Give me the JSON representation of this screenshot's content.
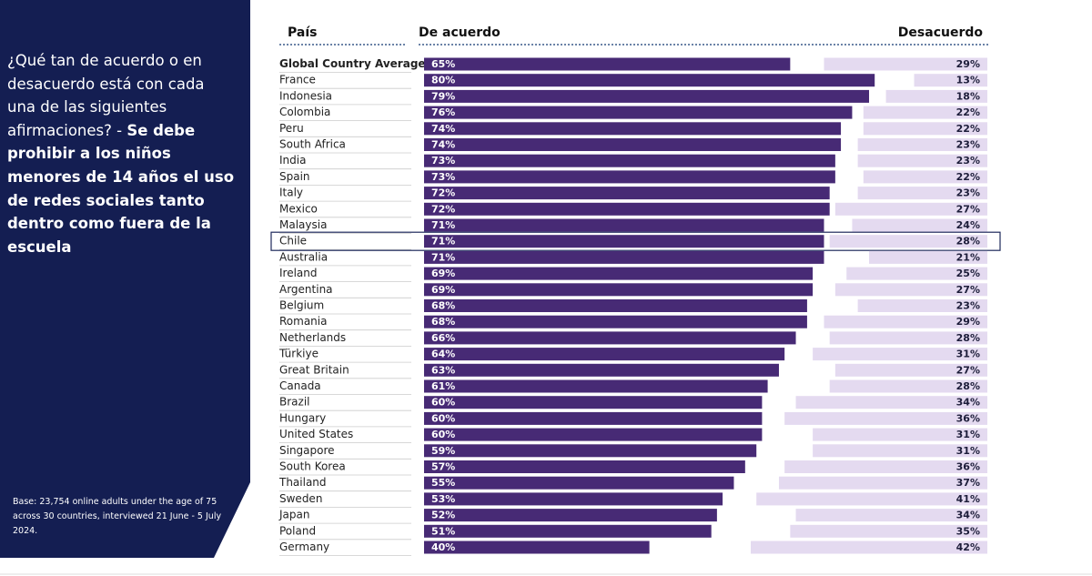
{
  "chart_data": {
    "type": "diverging_bar",
    "question": "¿Qué tan de acuerdo o en desacuerdo está con cada una de las siguientes afirmaciones? - ",
    "question_emphasis": "Se debe prohibir a los niños menores de 14 años el uso de redes sociales tanto dentro como fuera de la escuela",
    "note": "Base: 23,754 online adults under the age of 75 across 30 countries, interviewed 21 June - 5 July 2024.",
    "category_label": "País",
    "categories": [
      "Global Country Average",
      "France",
      "Indonesia",
      "Colombia",
      "Peru",
      "South Africa",
      "India",
      "Spain",
      "Italy",
      "Mexico",
      "Malaysia",
      "Chile",
      "Australia",
      "Ireland",
      "Argentina",
      "Belgium",
      "Romania",
      "Netherlands",
      "Türkiye",
      "Great Britain",
      "Canada",
      "Brazil",
      "Hungary",
      "United States",
      "Singapore",
      "South Korea",
      "Thailand",
      "Sweden",
      "Japan",
      "Poland",
      "Germany"
    ],
    "highlighted_category": 11,
    "series": [
      {
        "name": "De acuerdo",
        "color": "#472a75",
        "values": [
          65,
          80,
          79,
          76,
          74,
          74,
          73,
          73,
          72,
          72,
          71,
          71,
          71,
          69,
          69,
          68,
          68,
          66,
          64,
          63,
          61,
          60,
          60,
          60,
          59,
          57,
          55,
          53,
          52,
          51,
          40
        ],
        "value_labels": [
          "65%",
          "80%",
          "79%",
          "76%",
          "74%",
          "74%",
          "73%",
          "73%",
          "72%",
          "72%",
          "71%",
          "71%",
          "71%",
          "69%",
          "69%",
          "68%",
          "68%",
          "66%",
          "64%",
          "63%",
          "61%",
          "60%",
          "60%",
          "60%",
          "59%",
          "57%",
          "55%",
          "53%",
          "52%",
          "51%",
          "40%"
        ]
      },
      {
        "name": "Desacuerdo",
        "color": "#e4daf0",
        "values": [
          29,
          13,
          18,
          22,
          22,
          23,
          23,
          22,
          23,
          27,
          24,
          28,
          21,
          25,
          27,
          23,
          29,
          28,
          31,
          27,
          28,
          34,
          36,
          31,
          31,
          36,
          37,
          41,
          34,
          35,
          42
        ],
        "value_labels": [
          "29%",
          "13%",
          "18%",
          "22%",
          "22%",
          "23%",
          "23%",
          "22%",
          "23%",
          "27%",
          "24%",
          "28%",
          "21%",
          "25%",
          "27%",
          "23%",
          "29%",
          "28%",
          "31%",
          "27%",
          "28%",
          "34%",
          "36%",
          "31%",
          "31%",
          "36%",
          "37%",
          "41%",
          "34%",
          "35%",
          "42%"
        ]
      }
    ]
  }
}
